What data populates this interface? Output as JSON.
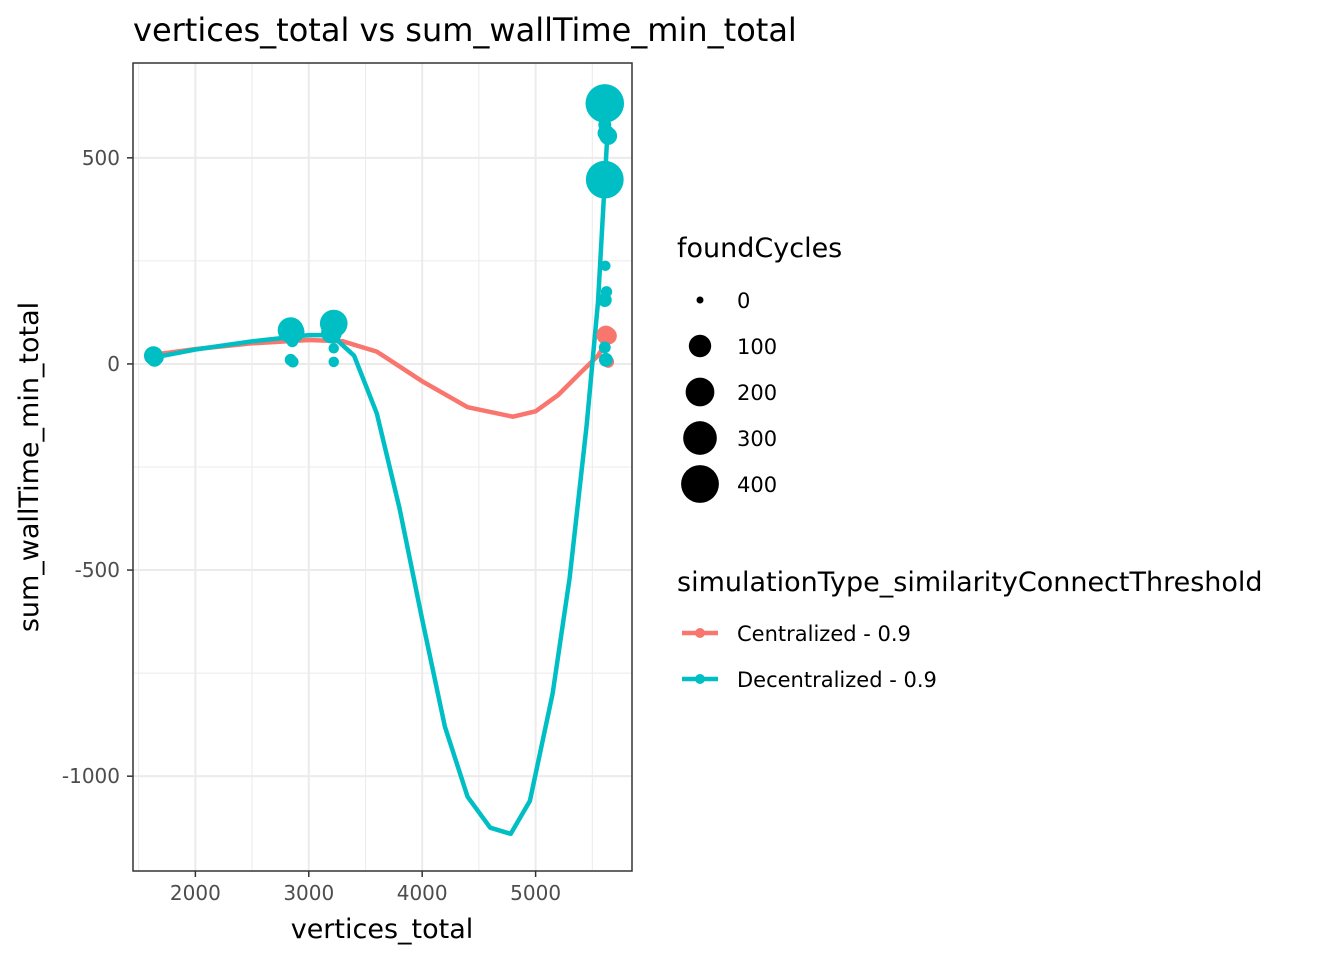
{
  "chart_data": {
    "type": "scatter",
    "title": "vertices_total  vs  sum_wallTime_min_total",
    "xlabel": "vertices_total",
    "ylabel": "sum_wallTime_min_total",
    "xlim": [
      1450,
      5850
    ],
    "ylim": [
      -1230,
      730
    ],
    "x_ticks": [
      2000,
      3000,
      4000,
      5000
    ],
    "x_tick_labels": [
      "2000",
      "3000",
      "4000",
      "5000"
    ],
    "y_ticks": [
      500,
      0,
      -500,
      -1000
    ],
    "y_tick_labels": [
      "500",
      "0",
      "-500",
      "-1000"
    ],
    "grid": true,
    "legend_position": "right",
    "size_legend": {
      "title": "foundCycles",
      "labels": [
        "0",
        "100",
        "200",
        "300",
        "400"
      ],
      "values": [
        0,
        100,
        200,
        300,
        400
      ]
    },
    "color_legend": {
      "title": "simulationType_similarityConnectThreshold",
      "labels": [
        "Centralized - 0.9",
        "Decentralized - 0.9"
      ],
      "colors": [
        "#F8766D",
        "#00BFC4"
      ]
    },
    "series": [
      {
        "name": "Centralized - 0.9",
        "color": "#F8766D",
        "points": [
          {
            "x": 1640,
            "y": 20,
            "size": 8
          },
          {
            "x": 1660,
            "y": 22,
            "size": 10
          },
          {
            "x": 5620,
            "y": 70,
            "size": 60
          },
          {
            "x": 5640,
            "y": 68,
            "size": 45
          },
          {
            "x": 5640,
            "y": 5,
            "size": 10
          },
          {
            "x": 5610,
            "y": 10,
            "size": 5
          }
        ],
        "smooth": [
          {
            "x": 1620,
            "y": 22
          },
          {
            "x": 2000,
            "y": 36
          },
          {
            "x": 2500,
            "y": 50
          },
          {
            "x": 3000,
            "y": 58
          },
          {
            "x": 3300,
            "y": 55
          },
          {
            "x": 3600,
            "y": 30
          },
          {
            "x": 4000,
            "y": -42
          },
          {
            "x": 4400,
            "y": -105
          },
          {
            "x": 4800,
            "y": -128
          },
          {
            "x": 5000,
            "y": -115
          },
          {
            "x": 5200,
            "y": -75
          },
          {
            "x": 5400,
            "y": -20
          },
          {
            "x": 5550,
            "y": 20
          },
          {
            "x": 5640,
            "y": 60
          }
        ]
      },
      {
        "name": "Decentralized - 0.9",
        "color": "#00BFC4",
        "points": [
          {
            "x": 1630,
            "y": 20,
            "size": 60
          },
          {
            "x": 1640,
            "y": 12,
            "size": 30
          },
          {
            "x": 1660,
            "y": 15,
            "size": 20
          },
          {
            "x": 2840,
            "y": 82,
            "size": 150
          },
          {
            "x": 2860,
            "y": 78,
            "size": 110
          },
          {
            "x": 2840,
            "y": 10,
            "size": 10
          },
          {
            "x": 2860,
            "y": 5,
            "size": 8
          },
          {
            "x": 2855,
            "y": 55,
            "size": 10
          },
          {
            "x": 3220,
            "y": 98,
            "size": 180
          },
          {
            "x": 3200,
            "y": 75,
            "size": 80
          },
          {
            "x": 3220,
            "y": 38,
            "size": 5
          },
          {
            "x": 3220,
            "y": 5,
            "size": 5
          },
          {
            "x": 5610,
            "y": 632,
            "size": 420
          },
          {
            "x": 5610,
            "y": 447,
            "size": 400
          },
          {
            "x": 5640,
            "y": 553,
            "size": 50
          },
          {
            "x": 5620,
            "y": 560,
            "size": 40
          },
          {
            "x": 5610,
            "y": 580,
            "size": 15
          },
          {
            "x": 5615,
            "y": 238,
            "size": 5
          },
          {
            "x": 5625,
            "y": 175,
            "size": 8
          },
          {
            "x": 5610,
            "y": 155,
            "size": 20
          },
          {
            "x": 5620,
            "y": 10,
            "size": 20
          },
          {
            "x": 5610,
            "y": 40,
            "size": 10
          }
        ],
        "smooth": [
          {
            "x": 1620,
            "y": 15
          },
          {
            "x": 2000,
            "y": 35
          },
          {
            "x": 2500,
            "y": 55
          },
          {
            "x": 3000,
            "y": 70
          },
          {
            "x": 3200,
            "y": 70
          },
          {
            "x": 3400,
            "y": 20
          },
          {
            "x": 3600,
            "y": -120
          },
          {
            "x": 3800,
            "y": -350
          },
          {
            "x": 4000,
            "y": -620
          },
          {
            "x": 4200,
            "y": -880
          },
          {
            "x": 4400,
            "y": -1050
          },
          {
            "x": 4600,
            "y": -1125
          },
          {
            "x": 4780,
            "y": -1140
          },
          {
            "x": 4950,
            "y": -1060
          },
          {
            "x": 5150,
            "y": -800
          },
          {
            "x": 5300,
            "y": -520
          },
          {
            "x": 5450,
            "y": -150
          },
          {
            "x": 5550,
            "y": 150
          },
          {
            "x": 5630,
            "y": 540
          }
        ]
      }
    ]
  }
}
